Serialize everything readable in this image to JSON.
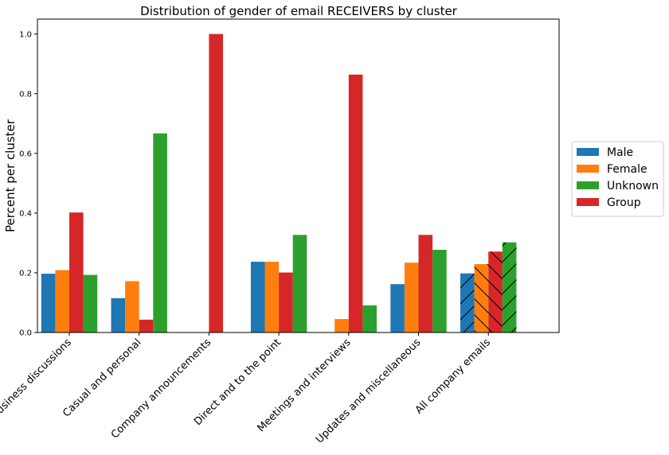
{
  "chart_data": {
    "type": "bar",
    "title": "Distribution of gender of email RECEIVERS by cluster",
    "xlabel": "",
    "ylabel": "Percent per cluster",
    "ylim": [
      0,
      1.05
    ],
    "yticks": [
      "0.0",
      "0.2",
      "0.4",
      "0.6",
      "0.8",
      "1.0"
    ],
    "categories": [
      "Business discussions",
      "Casual and personal",
      "Company announcements",
      "Direct and to the point",
      "Meetings and interviews",
      "Updates and miscellaneous",
      "All company emails"
    ],
    "series": [
      {
        "name": "Male",
        "color": "#1f77b4",
        "values": [
          0.197,
          0.115,
          0.0,
          0.237,
          0.0,
          0.162,
          0.198
        ]
      },
      {
        "name": "Female",
        "color": "#ff7f0e",
        "values": [
          0.209,
          0.172,
          0.0,
          0.237,
          0.045,
          0.234,
          0.229
        ]
      },
      {
        "name": "Group",
        "color": "#d62728",
        "values": [
          0.402,
          0.043,
          1.0,
          0.201,
          0.864,
          0.327,
          0.271
        ]
      },
      {
        "name": "Unknown",
        "color": "#2ca02c",
        "values": [
          0.193,
          0.667,
          0.0,
          0.327,
          0.091,
          0.277,
          0.302
        ]
      }
    ],
    "legend": {
      "placement": "right",
      "order": [
        "Male",
        "Female",
        "Unknown",
        "Group"
      ]
    },
    "hatched_category": "All company emails",
    "grid": false
  }
}
